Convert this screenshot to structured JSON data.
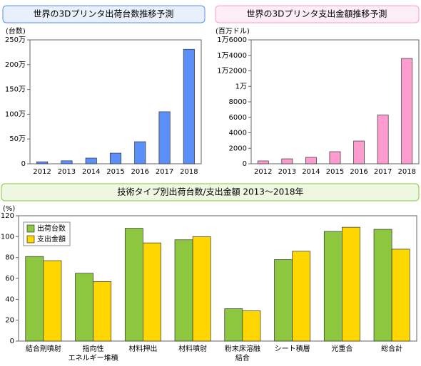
{
  "chart_data": [
    {
      "type": "bar",
      "title": "世界の3Dプリンタ出荷台数推移予測",
      "y_label": "(台数)",
      "categories": [
        "2012",
        "2013",
        "2014",
        "2015",
        "2016",
        "2017",
        "2018"
      ],
      "values": [
        40000,
        60000,
        115000,
        215000,
        445000,
        1050000,
        2310000
      ],
      "color": "#5b8ff9",
      "ylim": [
        0,
        2500000
      ],
      "yticks": [
        0,
        {
          "value": 500000,
          "label": "50万"
        },
        {
          "value": 1000000,
          "label": "100万"
        },
        {
          "value": 1500000,
          "label": "150万"
        },
        {
          "value": 2000000,
          "label": "200万"
        },
        {
          "value": 2500000,
          "label": "250万"
        }
      ]
    },
    {
      "type": "bar",
      "title": "世界の3Dプリンタ支出金額推移予測",
      "y_label": "(百万ドル)",
      "categories": [
        "2012",
        "2013",
        "2014",
        "2015",
        "2016",
        "2017",
        "2018"
      ],
      "values": [
        370,
        640,
        830,
        1560,
        2940,
        6300,
        13600
      ],
      "color": "#ff9ccf",
      "ylim": [
        0,
        16000
      ],
      "yticks": [
        0,
        2000,
        4000,
        6000,
        8000,
        {
          "value": 10000,
          "label": "1万"
        },
        {
          "value": 12000,
          "label": "1万2000"
        },
        {
          "value": 14000,
          "label": "1万4000"
        },
        {
          "value": 16000,
          "label": "1万6000"
        }
      ]
    },
    {
      "type": "grouped_bar",
      "title": "技術タイプ別出荷台数/支出金額 2013～2018年",
      "y_label": "(%)",
      "categories": [
        "結合剤噴射",
        "指向性\nエネルギー堆積",
        "材料押出",
        "材料噴射",
        "粉末床溶融\n結合",
        "シート積層",
        "光重合",
        "総合計"
      ],
      "series": [
        {
          "name": "出荷台数",
          "color": "#8dc63f",
          "values": [
            81,
            65,
            108,
            97,
            31,
            78,
            105,
            107
          ]
        },
        {
          "name": "支出金額",
          "color": "#ffd700",
          "values": [
            77,
            57,
            94,
            100,
            29,
            86,
            109,
            88
          ]
        }
      ],
      "ylim": [
        0,
        120
      ],
      "yticks": [
        0,
        20,
        40,
        60,
        80,
        100,
        120
      ],
      "legend": "upper left"
    }
  ]
}
